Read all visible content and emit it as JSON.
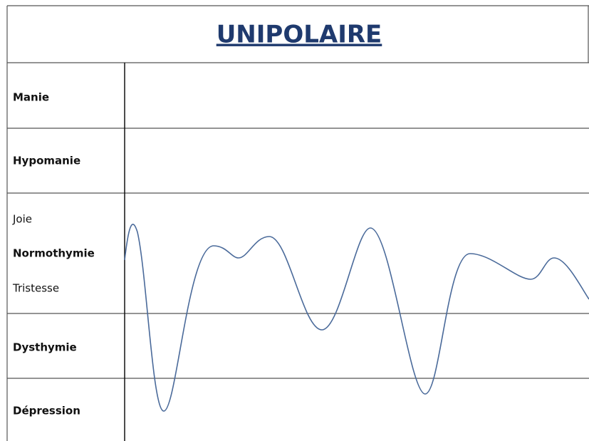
{
  "title": "UNIPOLAIRE",
  "rows": [
    {
      "labels": [
        "Manie"
      ]
    },
    {
      "labels": [
        "Hypomanie"
      ]
    },
    {
      "labels": [
        "Joie",
        "Normothymie",
        "Tristesse"
      ]
    },
    {
      "labels": [
        "Dysthymie"
      ]
    },
    {
      "labels": [
        "Dépression"
      ]
    }
  ]
}
